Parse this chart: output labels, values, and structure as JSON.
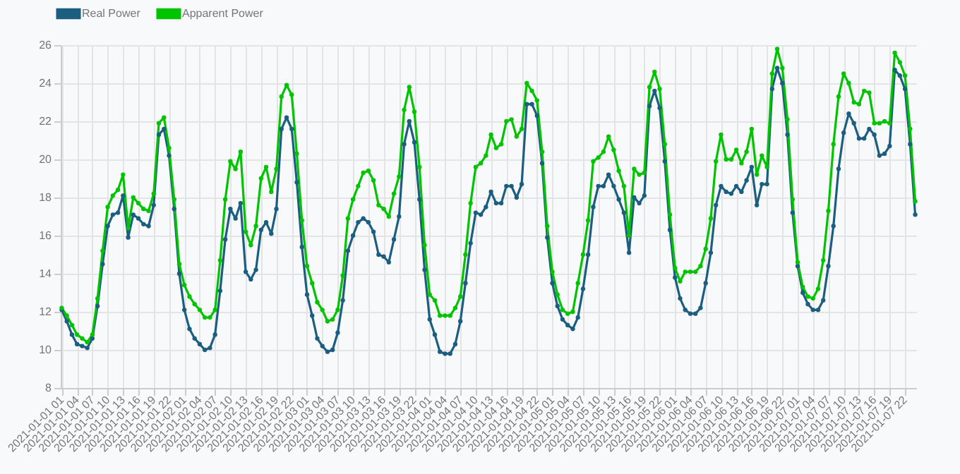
{
  "chart_data": {
    "type": "line",
    "categories": [
      "2021-01-01 01",
      null,
      null,
      "2021-01-01 04",
      null,
      null,
      "2021-01-01 07",
      null,
      null,
      "2021-01-01 10",
      null,
      null,
      "2021-01-01 13",
      null,
      null,
      "2021-01-01 16",
      null,
      null,
      "2021-01-01 19",
      null,
      null,
      "2021-01-01 22",
      null,
      null,
      "2021-01-02 01",
      null,
      null,
      "2021-01-02 04",
      null,
      null,
      "2021-01-02 07",
      null,
      null,
      "2021-01-02 10",
      null,
      null,
      "2021-01-02 13",
      null,
      null,
      "2021-01-02 16",
      null,
      null,
      "2021-01-02 19",
      null,
      null,
      "2021-01-02 22",
      null,
      null,
      "2021-01-03 01",
      null,
      null,
      "2021-01-03 04",
      null,
      null,
      "2021-01-03 07",
      null,
      null,
      "2021-01-03 10",
      null,
      null,
      "2021-01-03 13",
      null,
      null,
      "2021-01-03 16",
      null,
      null,
      "2021-01-03 19",
      null,
      null,
      "2021-01-03 22",
      null,
      null,
      "2021-01-04 01",
      null,
      null,
      "2021-01-04 04",
      null,
      null,
      "2021-01-04 07",
      null,
      null,
      "2021-01-04 10",
      null,
      null,
      "2021-01-04 13",
      null,
      null,
      "2021-01-04 16",
      null,
      null,
      "2021-01-04 19",
      null,
      null,
      "2021-01-04 22",
      null,
      null,
      "2021-01-05 01",
      null,
      null,
      "2021-01-05 04",
      null,
      null,
      "2021-01-05 07",
      null,
      null,
      "2021-01-05 10",
      null,
      null,
      "2021-01-05 13",
      null,
      null,
      "2021-01-05 16",
      null,
      null,
      "2021-01-05 19",
      null,
      null,
      "2021-01-05 22",
      null,
      null,
      "2021-01-06 01",
      null,
      null,
      "2021-01-06 04",
      null,
      null,
      "2021-01-06 07",
      null,
      null,
      "2021-01-06 10",
      null,
      null,
      "2021-01-06 13",
      null,
      null,
      "2021-01-06 16",
      null,
      null,
      "2021-01-06 19",
      null,
      null,
      "2021-01-06 22",
      null,
      null,
      "2021-01-07 01",
      null,
      null,
      "2021-01-07 04",
      null,
      null,
      "2021-01-07 07",
      null,
      null,
      "2021-01-07 10",
      null,
      null,
      "2021-01-07 13",
      null,
      null,
      "2021-01-07 16",
      null,
      null,
      "2021-01-07 19",
      null,
      null,
      "2021-01-07 22",
      null,
      null
    ],
    "series": [
      {
        "name": "Real Power",
        "color": "#1b5e80",
        "values": [
          12.1,
          11.5,
          10.8,
          10.3,
          10.2,
          10.1,
          10.6,
          12.3,
          14.5,
          16.5,
          17.1,
          17.2,
          18.1,
          15.9,
          17.1,
          16.9,
          16.6,
          16.5,
          17.6,
          21.3,
          21.6,
          20.2,
          17.4,
          14.0,
          12.1,
          11.1,
          10.6,
          10.3,
          10.0,
          10.1,
          10.8,
          13.1,
          15.8,
          17.4,
          16.9,
          17.7,
          14.1,
          13.7,
          14.2,
          16.3,
          16.7,
          16.1,
          17.4,
          21.6,
          22.2,
          21.6,
          18.8,
          15.4,
          12.9,
          11.8,
          10.6,
          10.2,
          9.9,
          10.0,
          10.9,
          12.6,
          15.2,
          16.0,
          16.7,
          16.9,
          16.7,
          16.2,
          15.0,
          14.9,
          14.6,
          15.8,
          17.0,
          20.8,
          22.0,
          20.9,
          17.9,
          14.2,
          11.6,
          10.8,
          9.9,
          9.8,
          9.8,
          10.3,
          11.5,
          13.5,
          15.6,
          17.2,
          17.1,
          17.5,
          18.3,
          17.7,
          17.7,
          18.6,
          18.6,
          18.0,
          18.7,
          22.9,
          22.9,
          22.3,
          19.8,
          15.9,
          13.5,
          12.3,
          11.6,
          11.3,
          11.1,
          11.7,
          13.2,
          15.0,
          17.5,
          18.6,
          18.6,
          19.2,
          18.6,
          17.9,
          17.2,
          15.1,
          18.0,
          17.7,
          18.1,
          22.8,
          23.6,
          22.7,
          19.9,
          16.3,
          13.8,
          12.7,
          12.1,
          11.9,
          11.9,
          12.2,
          13.5,
          15.1,
          17.6,
          18.6,
          18.3,
          18.2,
          18.6,
          18.3,
          18.9,
          19.6,
          17.6,
          18.7,
          18.7,
          23.7,
          24.8,
          24.0,
          21.3,
          17.2,
          14.4,
          13.0,
          12.4,
          12.1,
          12.1,
          12.6,
          14.4,
          16.5,
          19.5,
          21.4,
          22.4,
          21.9,
          21.1,
          21.1,
          21.6,
          21.3,
          20.2,
          20.3,
          20.7,
          24.7,
          24.4,
          23.7,
          20.8,
          17.1
        ]
      },
      {
        "name": "Apparent Power",
        "color": "#00c400",
        "values": [
          12.2,
          11.8,
          11.3,
          10.8,
          10.6,
          10.4,
          10.8,
          12.7,
          15.2,
          17.5,
          18.1,
          18.4,
          19.2,
          16.4,
          18.0,
          17.7,
          17.4,
          17.3,
          18.2,
          21.9,
          22.2,
          20.6,
          17.9,
          14.5,
          13.4,
          12.8,
          12.4,
          12.1,
          11.7,
          11.7,
          12.1,
          14.7,
          17.9,
          19.9,
          19.5,
          20.4,
          16.2,
          15.5,
          16.5,
          19.0,
          19.6,
          18.3,
          19.5,
          23.3,
          23.9,
          23.4,
          20.3,
          16.8,
          14.4,
          13.5,
          12.5,
          12.1,
          11.5,
          11.6,
          12.1,
          13.9,
          16.9,
          17.9,
          18.6,
          19.3,
          19.4,
          18.9,
          17.6,
          17.4,
          17.0,
          18.2,
          19.1,
          22.6,
          23.8,
          22.5,
          19.6,
          15.5,
          12.9,
          12.6,
          11.8,
          11.8,
          11.8,
          12.2,
          12.8,
          15.0,
          17.7,
          19.6,
          19.8,
          20.2,
          21.3,
          20.6,
          20.8,
          22.0,
          22.1,
          21.2,
          21.6,
          24.0,
          23.6,
          23.1,
          20.4,
          16.5,
          14.1,
          12.9,
          12.1,
          11.9,
          12.0,
          13.5,
          15.0,
          16.8,
          19.9,
          20.1,
          20.4,
          21.2,
          20.5,
          19.4,
          18.6,
          16.0,
          19.5,
          19.2,
          19.3,
          23.8,
          24.6,
          23.7,
          20.8,
          17.1,
          14.3,
          13.6,
          14.1,
          14.1,
          14.1,
          14.4,
          15.3,
          16.9,
          19.9,
          21.3,
          20.0,
          20.0,
          20.5,
          19.8,
          20.4,
          21.6,
          19.2,
          20.2,
          19.6,
          24.5,
          25.8,
          24.8,
          22.1,
          17.9,
          14.6,
          13.3,
          12.8,
          12.7,
          13.2,
          14.7,
          17.3,
          20.8,
          23.3,
          24.5,
          24.0,
          23.0,
          22.9,
          23.6,
          23.5,
          21.9,
          21.9,
          22.0,
          21.9,
          25.6,
          25.1,
          24.4,
          21.6,
          17.8
        ]
      }
    ],
    "ylim": [
      8,
      26
    ],
    "yticks": [
      8,
      10,
      12,
      14,
      16,
      18,
      20,
      22,
      24,
      26
    ],
    "grid": true,
    "legend": "top",
    "marker": "circle",
    "line_style": "solid"
  }
}
